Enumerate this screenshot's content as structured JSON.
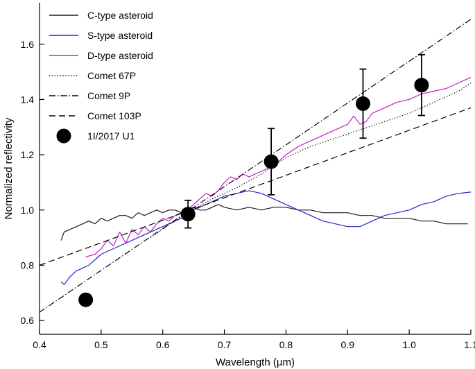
{
  "chart_data": {
    "type": "line",
    "title": "",
    "xlabel": "Wavelength (µm)",
    "ylabel": "Normalized reflectivity",
    "xlim": [
      0.4,
      1.1
    ],
    "ylim": [
      0.55,
      1.75
    ],
    "xticks": [
      "0.4",
      "0.5",
      "0.6",
      "0.7",
      "0.8",
      "0.9",
      "1.0",
      "1.1"
    ],
    "yticks": [
      "0.6",
      "0.8",
      "1.0",
      "1.2",
      "1.4",
      "1.6"
    ],
    "grid": false,
    "legend_position": "top-left",
    "series": [
      {
        "name": "C-type asteroid",
        "color": "#1a1a1a",
        "style": "solid",
        "x": [
          0.435,
          0.44,
          0.45,
          0.46,
          0.47,
          0.48,
          0.49,
          0.5,
          0.51,
          0.52,
          0.53,
          0.54,
          0.55,
          0.56,
          0.57,
          0.58,
          0.59,
          0.6,
          0.61,
          0.62,
          0.63,
          0.64,
          0.65,
          0.66,
          0.67,
          0.68,
          0.69,
          0.7,
          0.72,
          0.74,
          0.76,
          0.78,
          0.8,
          0.82,
          0.84,
          0.86,
          0.88,
          0.9,
          0.92,
          0.94,
          0.96,
          0.98,
          1.0,
          1.02,
          1.04,
          1.06,
          1.08,
          1.095
        ],
        "y": [
          0.89,
          0.92,
          0.93,
          0.94,
          0.95,
          0.96,
          0.95,
          0.97,
          0.96,
          0.97,
          0.98,
          0.98,
          0.97,
          0.99,
          0.98,
          0.99,
          1.0,
          0.99,
          1.0,
          1.0,
          0.99,
          1.0,
          1.01,
          1.0,
          1.0,
          1.01,
          1.02,
          1.01,
          1.0,
          1.01,
          1.0,
          1.01,
          1.01,
          1.0,
          1.0,
          0.99,
          0.99,
          0.99,
          0.98,
          0.98,
          0.97,
          0.97,
          0.97,
          0.96,
          0.96,
          0.95,
          0.95,
          0.95
        ]
      },
      {
        "name": "S-type asteroid",
        "color": "#2525c8",
        "style": "solid",
        "x": [
          0.435,
          0.44,
          0.45,
          0.46,
          0.47,
          0.48,
          0.49,
          0.5,
          0.51,
          0.52,
          0.53,
          0.54,
          0.55,
          0.56,
          0.57,
          0.58,
          0.59,
          0.6,
          0.61,
          0.62,
          0.63,
          0.64,
          0.65,
          0.66,
          0.67,
          0.68,
          0.69,
          0.7,
          0.72,
          0.74,
          0.76,
          0.78,
          0.8,
          0.82,
          0.84,
          0.86,
          0.88,
          0.9,
          0.92,
          0.94,
          0.96,
          0.98,
          1.0,
          1.02,
          1.04,
          1.06,
          1.08,
          1.1
        ],
        "y": [
          0.74,
          0.73,
          0.76,
          0.78,
          0.79,
          0.8,
          0.82,
          0.84,
          0.85,
          0.86,
          0.87,
          0.88,
          0.89,
          0.9,
          0.91,
          0.92,
          0.93,
          0.94,
          0.95,
          0.96,
          0.97,
          0.98,
          1.0,
          1.01,
          1.02,
          1.03,
          1.04,
          1.05,
          1.06,
          1.07,
          1.06,
          1.04,
          1.02,
          1.0,
          0.98,
          0.96,
          0.95,
          0.94,
          0.94,
          0.96,
          0.98,
          0.99,
          1.0,
          1.02,
          1.03,
          1.05,
          1.06,
          1.065
        ]
      },
      {
        "name": "D-type asteroid",
        "color": "#c21ec2",
        "style": "solid",
        "x": [
          0.475,
          0.49,
          0.5,
          0.51,
          0.52,
          0.53,
          0.54,
          0.55,
          0.56,
          0.57,
          0.58,
          0.59,
          0.6,
          0.61,
          0.62,
          0.63,
          0.64,
          0.65,
          0.66,
          0.67,
          0.68,
          0.69,
          0.7,
          0.71,
          0.72,
          0.73,
          0.74,
          0.76,
          0.78,
          0.8,
          0.82,
          0.84,
          0.86,
          0.88,
          0.9,
          0.91,
          0.92,
          0.93,
          0.94,
          0.96,
          0.98,
          1.0,
          1.02,
          1.04,
          1.06,
          1.08,
          1.1
        ],
        "y": [
          0.83,
          0.84,
          0.86,
          0.89,
          0.87,
          0.92,
          0.88,
          0.93,
          0.91,
          0.94,
          0.92,
          0.95,
          0.97,
          0.96,
          0.98,
          0.99,
          1.0,
          1.02,
          1.04,
          1.06,
          1.05,
          1.07,
          1.1,
          1.12,
          1.11,
          1.13,
          1.12,
          1.14,
          1.16,
          1.2,
          1.23,
          1.25,
          1.27,
          1.29,
          1.31,
          1.34,
          1.31,
          1.32,
          1.35,
          1.37,
          1.39,
          1.4,
          1.42,
          1.43,
          1.44,
          1.46,
          1.48
        ]
      },
      {
        "name": "Comet 67P",
        "color": "#000000",
        "style": "dotted",
        "x": [
          0.58,
          0.6,
          0.64,
          0.68,
          0.72,
          0.76,
          0.8,
          0.84,
          0.88,
          0.92,
          0.96,
          1.0,
          1.04,
          1.08,
          1.1
        ],
        "y": [
          0.9,
          0.93,
          0.99,
          1.04,
          1.08,
          1.13,
          1.19,
          1.23,
          1.26,
          1.29,
          1.32,
          1.35,
          1.39,
          1.43,
          1.46
        ]
      },
      {
        "name": "Comet 9P",
        "color": "#000000",
        "style": "dashdot",
        "x": [
          0.4,
          1.1
        ],
        "y": [
          0.63,
          1.69
        ]
      },
      {
        "name": "Comet 103P",
        "color": "#000000",
        "style": "dashed",
        "x": [
          0.4,
          1.1
        ],
        "y": [
          0.8,
          1.37
        ]
      }
    ],
    "points": {
      "name": "1I/2017 U1",
      "color": "#000000",
      "x": [
        0.475,
        0.641,
        0.776,
        0.925,
        1.02
      ],
      "y": [
        0.675,
        0.985,
        1.175,
        1.385,
        1.452
      ],
      "yerr": [
        0,
        0.05,
        0.12,
        0.125,
        0.11
      ]
    }
  }
}
